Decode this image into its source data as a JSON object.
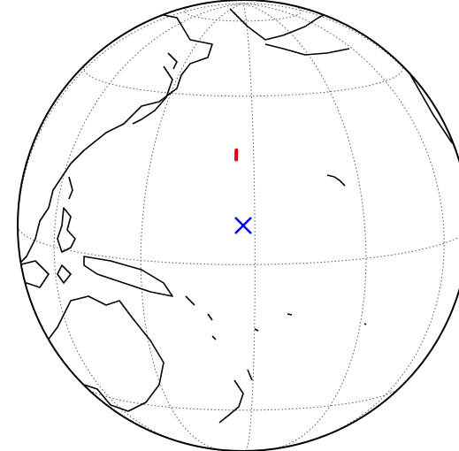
{
  "map": {
    "projection": "orthographic",
    "center": {
      "lon": 177,
      "lat": 10
    },
    "graticule": {
      "lats": [
        -45,
        0,
        45,
        75
      ],
      "lons": [
        90,
        120,
        150,
        180,
        210,
        240,
        270
      ]
    },
    "markers": [
      {
        "shape": "segment",
        "color": "#e00000",
        "lon": [
          175,
          175
        ],
        "lat": [
          27,
          29.5
        ]
      },
      {
        "shape": "cross",
        "color": "#0000ff",
        "lon": 177,
        "lat": 10
      }
    ]
  }
}
